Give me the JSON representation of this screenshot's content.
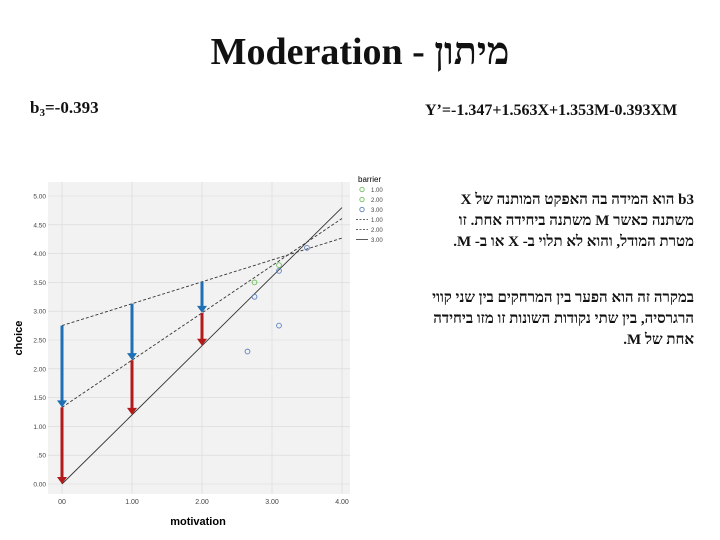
{
  "title": "Moderation - מיתון",
  "b3_text": {
    "prefix": "b",
    "sub": "3",
    "rest": "=-0.393"
  },
  "equation": "Y’=-1.347+1.563X+1.353M-0.393XM",
  "paragraph1": "b3 הוא המידה בה האפקט המותנה של X משתנה כאשר M משתנה ביחידה אחת. זו מטרת המודל, והוא לא תלוי ב- X או ב- M.",
  "paragraph2": "במקרה זה הוא הפער בין המרחקים בין שני קווי הרגרסיה, בין שתי נקודות השונות זו מזו ביחידה אחת של M.",
  "colors": {
    "arrow_blue": "#1f6fb5",
    "arrow_red": "#b31b1b",
    "marker_green": "#6fbf5f",
    "marker_blue": "#5b7fbf"
  },
  "chart_data": {
    "type": "line",
    "xlabel": "motivation",
    "ylabel": "choice",
    "xlim": [
      0,
      4
    ],
    "ylim": [
      0,
      5
    ],
    "x_ticks": [
      "00",
      "1.00",
      "2.00",
      "3.00",
      "4.00"
    ],
    "y_ticks": [
      "0.00",
      ".50",
      "1.00",
      "1.50",
      "2.00",
      "2.50",
      "3.00",
      "3.50",
      "4.00",
      "4.50",
      "5.00"
    ],
    "legend_title": "barrier",
    "series": [
      {
        "name": "1.00",
        "marker": "green",
        "points": [
          [
            2.75,
            3.5
          ],
          [
            3.1,
            3.8
          ]
        ]
      },
      {
        "name": "2.00",
        "marker": "blue",
        "points": [
          [
            2.75,
            3.25
          ],
          [
            3.1,
            3.7
          ]
        ]
      },
      {
        "name": "3.00",
        "marker": "blue",
        "points": [
          [
            2.65,
            2.3
          ],
          [
            3.1,
            2.75
          ],
          [
            3.5,
            4.1
          ]
        ]
      }
    ],
    "regression_lines": [
      {
        "name": "1.00",
        "style": "dash",
        "intercept": 2.75,
        "slope": 0.38
      },
      {
        "name": "2.00",
        "style": "dash",
        "intercept": 1.33,
        "slope": 0.82
      },
      {
        "name": "3.00",
        "style": "solid",
        "intercept": 0.0,
        "slope": 1.2
      }
    ],
    "arrows": [
      {
        "color": "blue",
        "x": 0.0,
        "from": 2.75,
        "to": 1.33
      },
      {
        "color": "red",
        "x": 0.0,
        "from": 1.33,
        "to": 0.0
      },
      {
        "color": "blue",
        "x": 1.0,
        "from": 3.13,
        "to": 2.15
      },
      {
        "color": "red",
        "x": 1.0,
        "from": 2.15,
        "to": 1.2
      },
      {
        "color": "blue",
        "x": 2.0,
        "from": 3.51,
        "to": 2.97
      },
      {
        "color": "red",
        "x": 2.0,
        "from": 2.97,
        "to": 2.4
      }
    ]
  }
}
